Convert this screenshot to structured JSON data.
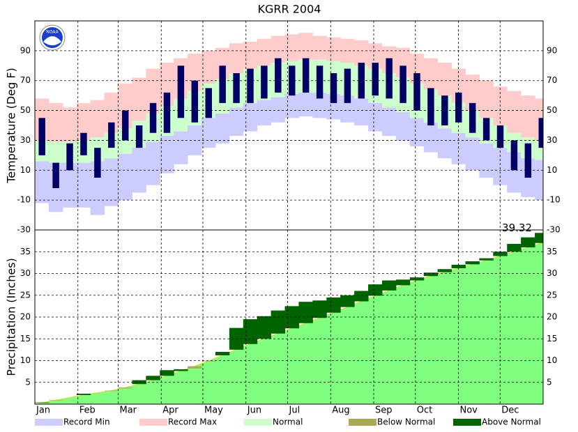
{
  "title": "KGRR 2004",
  "logo_text": "NOAA",
  "chart_data": [
    {
      "type": "temperature_range",
      "ylabel": "Temperature (Deg F)",
      "xlim": [
        0,
        366
      ],
      "xticks": [
        0,
        31,
        60,
        91,
        121,
        152,
        182,
        213,
        244,
        274,
        305,
        335
      ],
      "ylim": [
        -30,
        110
      ],
      "yticks": [
        -30,
        -10,
        10,
        30,
        50,
        70,
        90
      ],
      "grid": true,
      "x": [
        5,
        15,
        25,
        35,
        45,
        55,
        65,
        75,
        85,
        95,
        105,
        115,
        125,
        135,
        145,
        155,
        165,
        175,
        185,
        195,
        205,
        215,
        225,
        235,
        245,
        255,
        265,
        275,
        285,
        295,
        305,
        315,
        325,
        335,
        345,
        355,
        365
      ],
      "series": [
        {
          "name": "Record Min",
          "color": "#ccccff",
          "values": [
            -12,
            -18,
            -15,
            -15,
            -20,
            -14,
            -10,
            -5,
            0,
            8,
            14,
            20,
            25,
            28,
            33,
            36,
            40,
            42,
            45,
            46,
            45,
            44,
            42,
            40,
            36,
            33,
            30,
            26,
            22,
            18,
            14,
            10,
            5,
            0,
            -5,
            -8,
            -10
          ]
        },
        {
          "name": "Record Max",
          "color": "#ffcccc",
          "values": [
            58,
            55,
            52,
            55,
            57,
            62,
            68,
            72,
            78,
            82,
            85,
            88,
            90,
            92,
            95,
            96,
            98,
            100,
            101,
            102,
            100,
            99,
            98,
            97,
            95,
            93,
            92,
            88,
            85,
            82,
            78,
            74,
            70,
            66,
            63,
            60,
            58
          ]
        },
        {
          "name": "Normal",
          "color": "#ccffcc",
          "high": [
            30,
            29,
            29,
            30,
            32,
            35,
            38,
            43,
            48,
            53,
            58,
            63,
            68,
            71,
            75,
            78,
            80,
            82,
            83,
            84,
            84,
            83,
            82,
            80,
            78,
            75,
            72,
            68,
            64,
            60,
            55,
            50,
            45,
            40,
            35,
            32,
            30
          ],
          "low": [
            16,
            15,
            15,
            15,
            16,
            18,
            21,
            25,
            29,
            33,
            36,
            40,
            45,
            48,
            52,
            55,
            57,
            59,
            61,
            62,
            62,
            61,
            60,
            58,
            55,
            52,
            49,
            45,
            42,
            38,
            35,
            32,
            28,
            25,
            22,
            18,
            17
          ]
        },
        {
          "color": "#000066",
          "high": [
            45,
            15,
            28,
            35,
            25,
            42,
            50,
            40,
            55,
            62,
            80,
            70,
            65,
            80,
            75,
            78,
            80,
            85,
            80,
            85,
            80,
            75,
            78,
            82,
            82,
            85,
            80,
            75,
            65,
            60,
            62,
            55,
            45,
            40,
            30,
            28,
            45
          ],
          "low": [
            20,
            -2,
            10,
            20,
            5,
            25,
            30,
            25,
            35,
            35,
            45,
            42,
            45,
            55,
            55,
            55,
            58,
            62,
            60,
            62,
            58,
            55,
            55,
            58,
            60,
            58,
            55,
            50,
            40,
            40,
            42,
            35,
            30,
            25,
            10,
            5,
            25
          ]
        }
      ]
    },
    {
      "type": "cumulative_precip",
      "ylabel": "Precipitation (Inches)",
      "xlim": [
        0,
        366
      ],
      "xticks": [
        {
          "value": 0,
          "label": "Jan"
        },
        {
          "value": 31,
          "label": "Feb"
        },
        {
          "value": 60,
          "label": "Mar"
        },
        {
          "value": 91,
          "label": "Apr"
        },
        {
          "value": 121,
          "label": "May"
        },
        {
          "value": 152,
          "label": "Jun"
        },
        {
          "value": 182,
          "label": "Jul"
        },
        {
          "value": 213,
          "label": "Aug"
        },
        {
          "value": 244,
          "label": "Sep"
        },
        {
          "value": 274,
          "label": "Oct"
        },
        {
          "value": 305,
          "label": "Nov"
        },
        {
          "value": 335,
          "label": "Dec"
        }
      ],
      "ylim": [
        0,
        40
      ],
      "yticks": [
        5,
        10,
        15,
        20,
        25,
        30,
        35
      ],
      "grid": true,
      "x": [
        5,
        15,
        25,
        35,
        45,
        55,
        65,
        75,
        85,
        95,
        105,
        115,
        125,
        135,
        145,
        155,
        165,
        175,
        185,
        195,
        205,
        215,
        225,
        235,
        245,
        255,
        265,
        275,
        285,
        295,
        305,
        315,
        325,
        335,
        345,
        355,
        365
      ],
      "normal": {
        "color": "#80ff80",
        "values": [
          0.3,
          0.9,
          1.5,
          2.1,
          2.6,
          3.1,
          3.8,
          4.6,
          5.5,
          6.5,
          7.6,
          8.7,
          9.9,
          11.2,
          12.5,
          13.8,
          15.0,
          16.2,
          17.4,
          18.6,
          19.8,
          21.0,
          22.3,
          23.6,
          24.9,
          26.1,
          27.3,
          28.4,
          29.4,
          30.3,
          31.2,
          32.1,
          33.0,
          34.0,
          35.0,
          36.0,
          37.0
        ]
      },
      "observed": {
        "label_last": true,
        "values": [
          0.4,
          0.8,
          1.5,
          2.4,
          2.6,
          3.0,
          3.6,
          5.5,
          6.5,
          7.8,
          8.0,
          8.2,
          9.8,
          12.0,
          17.5,
          19.5,
          20.2,
          21.5,
          22.5,
          23.5,
          23.8,
          24.5,
          25.0,
          26.0,
          27.5,
          28.4,
          28.6,
          29.1,
          30.2,
          31.0,
          32.0,
          32.8,
          33.5,
          35.0,
          36.8,
          38.3,
          39.32
        ]
      },
      "legend": [
        {
          "name": "Below Normal",
          "color": "#aaaa55"
        },
        {
          "name": "Above Normal",
          "color": "#006400"
        }
      ]
    }
  ]
}
